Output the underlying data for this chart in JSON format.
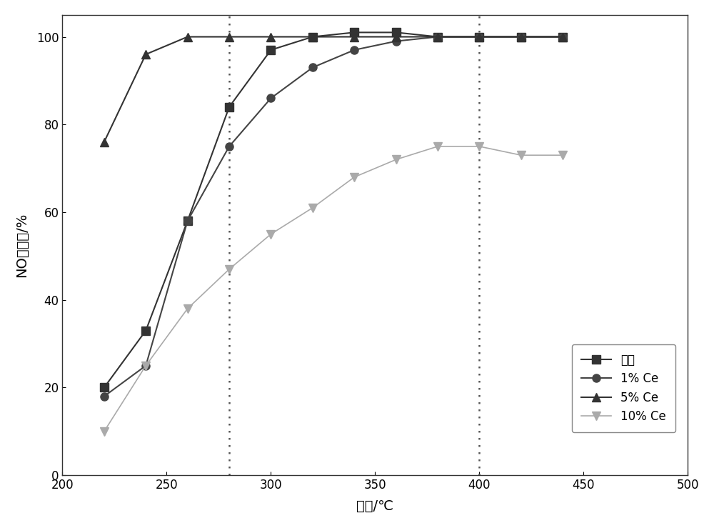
{
  "series": [
    {
      "label": "新鲜",
      "color": "#333333",
      "marker": "s",
      "markersize": 8,
      "linestyle": "-",
      "linewidth": 1.5,
      "x": [
        220,
        240,
        260,
        280,
        300,
        320,
        340,
        360,
        380,
        400,
        420,
        440
      ],
      "y": [
        20,
        33,
        58,
        84,
        97,
        100,
        101,
        101,
        100,
        100,
        100,
        100
      ]
    },
    {
      "label": "1% Ce",
      "color": "#444444",
      "marker": "o",
      "markersize": 8,
      "linestyle": "-",
      "linewidth": 1.5,
      "x": [
        220,
        240,
        260,
        280,
        300,
        320,
        340,
        360,
        380,
        400,
        420,
        440
      ],
      "y": [
        18,
        25,
        58,
        75,
        86,
        93,
        97,
        99,
        100,
        100,
        100,
        100
      ]
    },
    {
      "label": "5% Ce",
      "color": "#333333",
      "marker": "^",
      "markersize": 8,
      "linestyle": "-",
      "linewidth": 1.5,
      "x": [
        220,
        240,
        260,
        280,
        300,
        320,
        340,
        360,
        380,
        400,
        420,
        440
      ],
      "y": [
        76,
        96,
        100,
        100,
        100,
        100,
        100,
        100,
        100,
        100,
        100,
        100
      ]
    },
    {
      "label": "10% Ce",
      "color": "#aaaaaa",
      "marker": "v",
      "markersize": 8,
      "linestyle": "-",
      "linewidth": 1.2,
      "x": [
        220,
        240,
        260,
        280,
        300,
        320,
        340,
        360,
        380,
        400,
        420,
        440
      ],
      "y": [
        10,
        25,
        38,
        47,
        55,
        61,
        68,
        72,
        75,
        75,
        73,
        73
      ]
    }
  ],
  "xlabel": "温度/℃",
  "ylabel": "NO转化率/%",
  "xlim": [
    200,
    500
  ],
  "ylim": [
    0,
    105
  ],
  "yticks": [
    0,
    20,
    40,
    60,
    80,
    100
  ],
  "xticks": [
    200,
    250,
    300,
    350,
    400,
    450,
    500
  ],
  "vlines": [
    280,
    400
  ],
  "vline_color": "#555555",
  "vline_style": ":",
  "background_color": "#ffffff",
  "legend_loc": "lower right"
}
